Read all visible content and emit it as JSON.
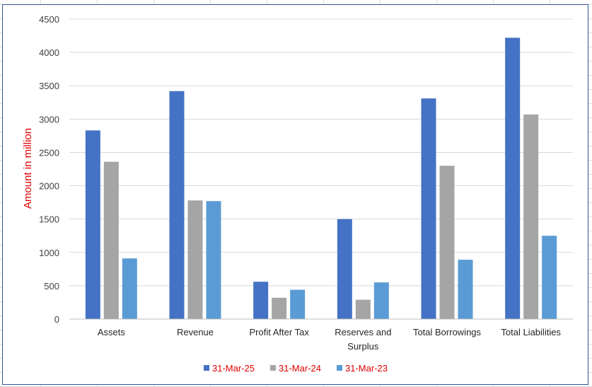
{
  "chart_data": {
    "type": "bar",
    "ylabel": "Amount in million",
    "xlabel": "",
    "title": "",
    "ylim": [
      0,
      4500
    ],
    "yticks": [
      0,
      500,
      1000,
      1500,
      2000,
      2500,
      3000,
      3500,
      4000,
      4500
    ],
    "grid": true,
    "legend_position": "bottom",
    "categories": [
      [
        "Assets"
      ],
      [
        "Revenue"
      ],
      [
        "Profit After Tax"
      ],
      [
        "Reserves and",
        "Surplus"
      ],
      [
        "Total Borrowings"
      ],
      [
        "Total Liabilities"
      ]
    ],
    "series": [
      {
        "name": "31-Mar-25",
        "color": "#4472c4",
        "values": [
          2830,
          3420,
          560,
          1500,
          3310,
          4220
        ]
      },
      {
        "name": "31-Mar-24",
        "color": "#a5a5a5",
        "values": [
          2360,
          1780,
          320,
          290,
          2300,
          3070
        ]
      },
      {
        "name": "31-Mar-23",
        "color": "#5b9bd5",
        "values": [
          910,
          1770,
          440,
          550,
          890,
          1250
        ]
      }
    ]
  }
}
